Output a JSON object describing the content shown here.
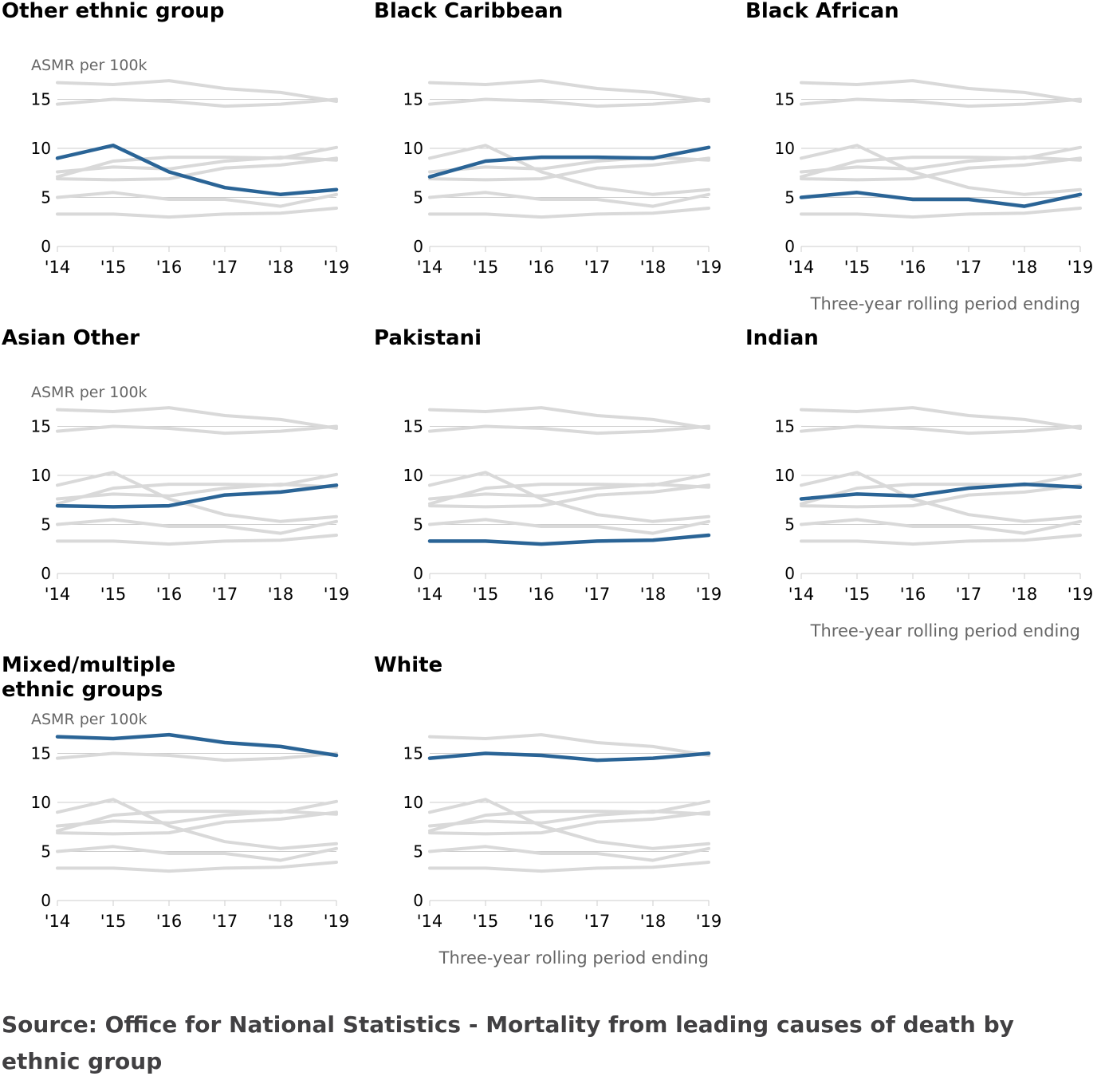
{
  "colors": {
    "highlight": "#2a6496",
    "context": "#d9d9d9",
    "grid": "#cccccc",
    "axis_text": "#000000",
    "label_text": "#666666",
    "source_text": "#414042"
  },
  "source": "Source: Office for National Statistics - Mortality from leading causes of death by ethnic group",
  "chart_data": {
    "type": "line",
    "ylabel": "ASMR per 100k",
    "xlabel": "Three-year rolling period ending",
    "x": [
      "'14",
      "'15",
      "'16",
      "'17",
      "'18",
      "'19"
    ],
    "ylim": [
      0,
      17
    ],
    "yticks": [
      0,
      5,
      10,
      15
    ],
    "grid": true,
    "series": [
      {
        "name": "Other ethnic group",
        "values": [
          9.0,
          10.3,
          7.6,
          6.0,
          5.3,
          5.8
        ]
      },
      {
        "name": "Black Caribbean",
        "values": [
          7.1,
          8.7,
          9.1,
          9.1,
          9.0,
          10.1
        ]
      },
      {
        "name": "Black African",
        "values": [
          5.0,
          5.5,
          4.8,
          4.8,
          4.1,
          5.3
        ]
      },
      {
        "name": "Asian Other",
        "values": [
          6.9,
          6.8,
          6.9,
          8.0,
          8.3,
          9.0
        ]
      },
      {
        "name": "Pakistani",
        "values": [
          3.3,
          3.3,
          3.0,
          3.3,
          3.4,
          3.9
        ]
      },
      {
        "name": "Indian",
        "values": [
          7.6,
          8.1,
          7.9,
          8.7,
          9.1,
          8.8
        ]
      },
      {
        "name": "Mixed/multiple ethnic groups",
        "values": [
          16.7,
          16.5,
          16.9,
          16.1,
          15.7,
          14.8
        ]
      },
      {
        "name": "White",
        "values": [
          14.5,
          15.0,
          14.8,
          14.3,
          14.5,
          15.0
        ]
      }
    ],
    "panels": [
      {
        "title_lines": [
          "Other ethnic group"
        ],
        "series_index": 0,
        "show_ylabel": true,
        "show_xlabel": false
      },
      {
        "title_lines": [
          "Black Caribbean"
        ],
        "series_index": 1,
        "show_ylabel": false,
        "show_xlabel": false
      },
      {
        "title_lines": [
          "Black African"
        ],
        "series_index": 2,
        "show_ylabel": false,
        "show_xlabel": true
      },
      {
        "title_lines": [
          "Asian Other"
        ],
        "series_index": 3,
        "show_ylabel": true,
        "show_xlabel": false
      },
      {
        "title_lines": [
          "Pakistani"
        ],
        "series_index": 4,
        "show_ylabel": false,
        "show_xlabel": false
      },
      {
        "title_lines": [
          "Indian"
        ],
        "series_index": 5,
        "show_ylabel": false,
        "show_xlabel": true
      },
      {
        "title_lines": [
          "Mixed/multiple",
          "ethnic groups"
        ],
        "series_index": 6,
        "show_ylabel": true,
        "show_xlabel": false
      },
      {
        "title_lines": [
          "White"
        ],
        "series_index": 7,
        "show_ylabel": false,
        "show_xlabel": true
      }
    ]
  }
}
